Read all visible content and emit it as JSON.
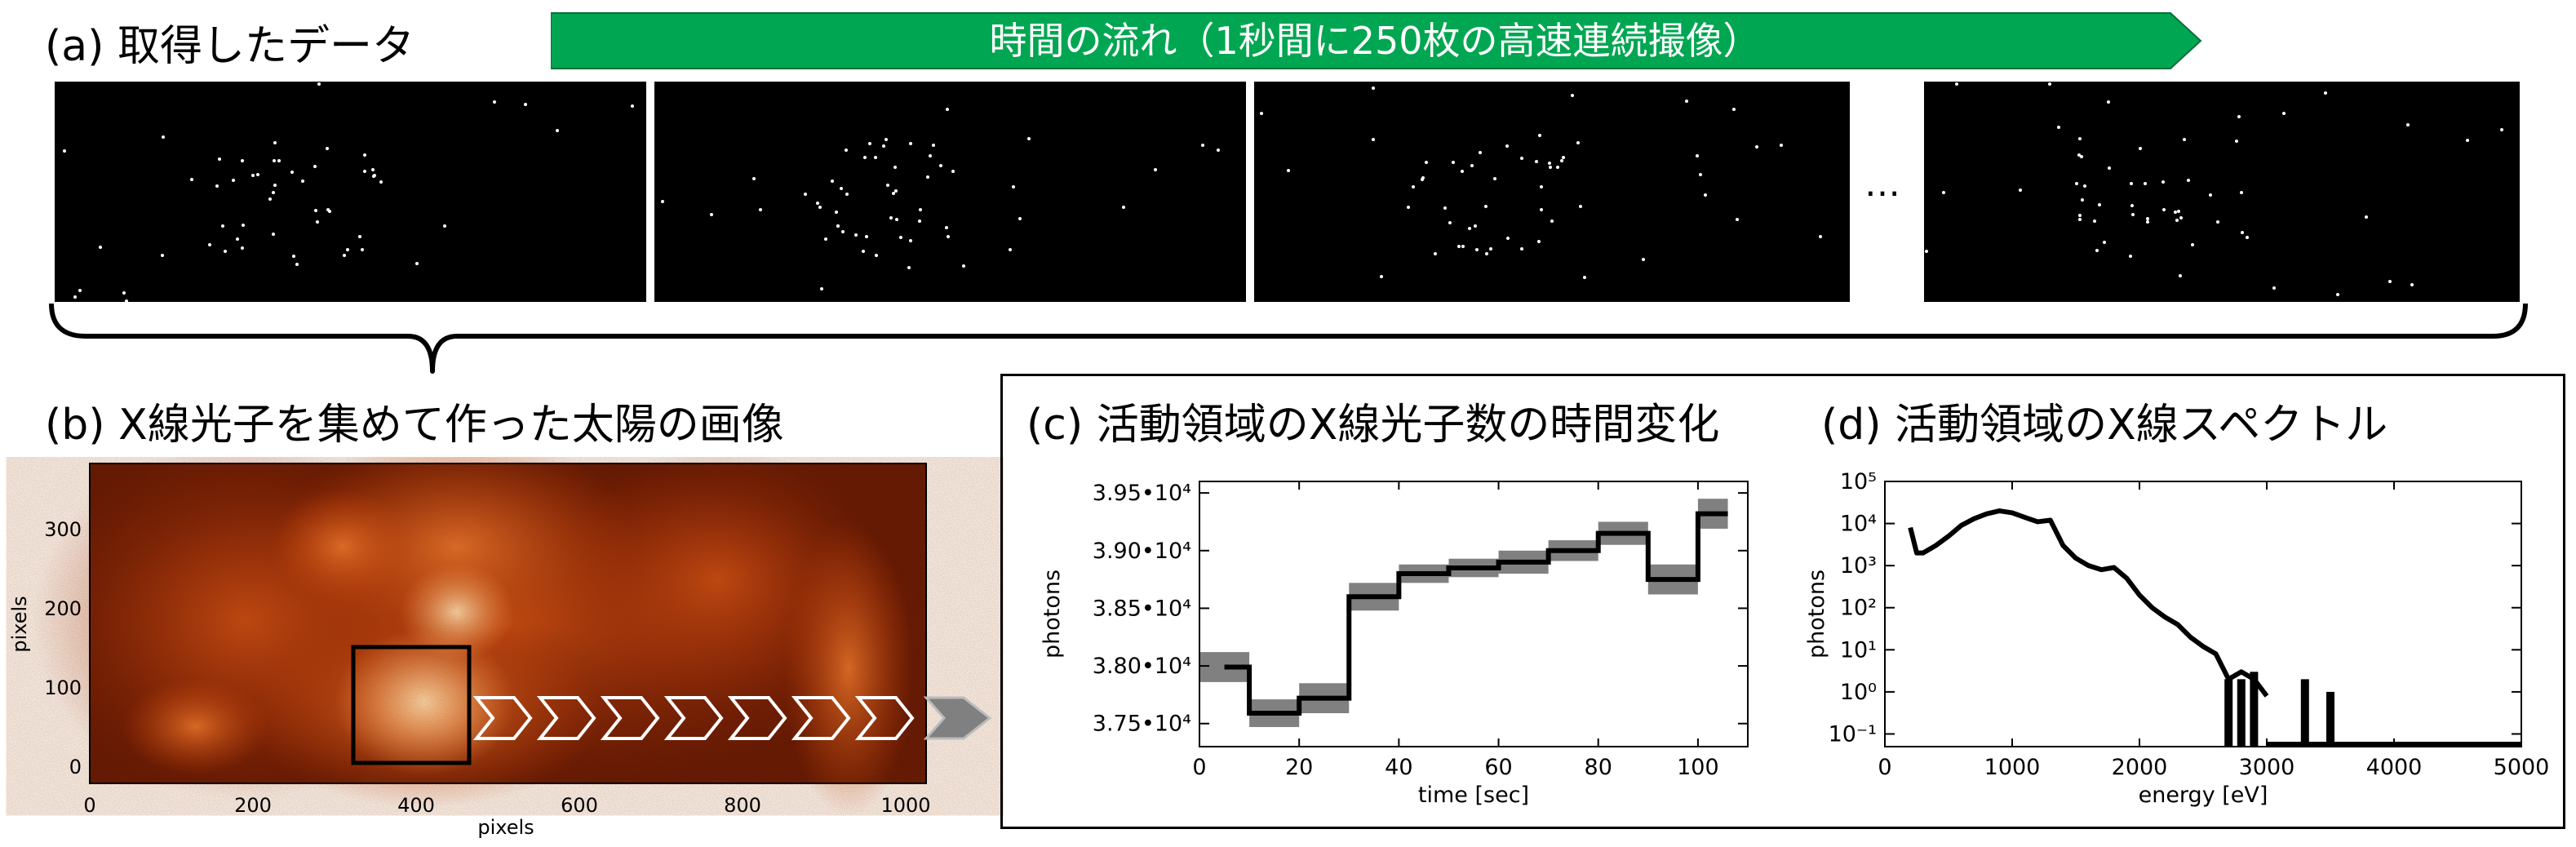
{
  "panel_a": {
    "title": "(a) 取得したデータ",
    "time_arrow_label": "時間の流れ（1秒間に250枚の高速連続撮像）",
    "ellipsis": "…",
    "colors": {
      "arrow_fill": "#00a651",
      "frame_bg": "#000000",
      "dot": "#ffffff"
    }
  },
  "panel_b": {
    "title": "(b) X線光子を集めて作った太陽の画像",
    "xlabel": "pixels",
    "ylabel": "pixels",
    "xticks": [
      "0",
      "200",
      "400",
      "600",
      "800",
      "1000"
    ],
    "yticks": [
      "0",
      "100",
      "200",
      "300"
    ],
    "colors": {
      "low": "#2a0600",
      "mid": "#c83c0a",
      "high": "#ffd6a0"
    }
  },
  "panel_c": {
    "title": "(c) 活動領域のX線光子数の時間変化"
  },
  "panel_d": {
    "title": "(d) 活動領域のX線スペクトル"
  },
  "chart_data": [
    {
      "type": "line",
      "panel": "c",
      "xlabel": "time [sec]",
      "ylabel": "photons",
      "xlim": [
        0,
        110
      ],
      "ylim": [
        37300,
        39600
      ],
      "xticks": [
        "0",
        "20",
        "40",
        "60",
        "80",
        "100"
      ],
      "yticks": [
        "3.75•10⁴",
        "3.80•10⁴",
        "3.85•10⁴",
        "3.90•10⁴",
        "3.95•10⁴"
      ],
      "ytick_values": [
        37500,
        38000,
        38500,
        39000,
        39500
      ],
      "step_style": "stairs with grey error band",
      "x": [
        0,
        10,
        20,
        30,
        40,
        50,
        60,
        70,
        80,
        90,
        100
      ],
      "values": [
        37990,
        37590,
        37720,
        38600,
        38800,
        38850,
        38900,
        39000,
        39150,
        38750,
        39320
      ],
      "error": [
        130,
        120,
        130,
        120,
        80,
        80,
        100,
        90,
        100,
        130,
        130
      ]
    },
    {
      "type": "line",
      "panel": "d",
      "xlabel": "energy [eV]",
      "ylabel": "photons",
      "xlim": [
        0,
        5000
      ],
      "yscale": "log",
      "ylim": [
        0.05,
        100000
      ],
      "xticks": [
        "0",
        "1000",
        "2000",
        "3000",
        "4000",
        "5000"
      ],
      "yticks": [
        "10⁻¹",
        "10⁰",
        "10¹",
        "10²",
        "10³",
        "10⁴",
        "10⁵"
      ],
      "x": [
        200,
        250,
        300,
        400,
        500,
        600,
        700,
        800,
        900,
        1000,
        1100,
        1200,
        1300,
        1400,
        1500,
        1600,
        1700,
        1800,
        1900,
        2000,
        2100,
        2200,
        2300,
        2400,
        2500,
        2600,
        2700,
        2800,
        2900,
        3000
      ],
      "values": [
        8000,
        2000,
        2000,
        3000,
        5000,
        9000,
        13000,
        17000,
        20000,
        18000,
        14000,
        11000,
        12000,
        3000,
        1500,
        1000,
        800,
        900,
        500,
        200,
        100,
        60,
        40,
        20,
        12,
        8,
        2,
        3,
        2,
        0.8
      ],
      "spikes_x": [
        2700,
        2800,
        2900,
        3300,
        3500
      ],
      "spikes_peak": [
        2,
        2,
        3,
        2,
        1
      ]
    }
  ]
}
